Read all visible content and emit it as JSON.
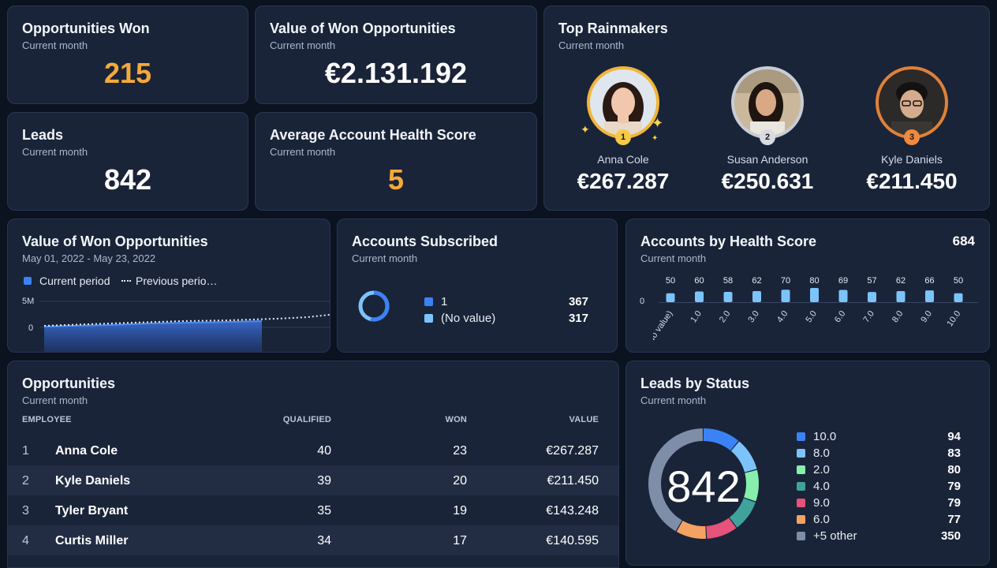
{
  "kpis": {
    "won": {
      "title": "Opportunities Won",
      "sub": "Current month",
      "value": "215"
    },
    "value_won": {
      "title": "Value of Won Opportunities",
      "sub": "Current month",
      "value": "€2.131.192"
    },
    "leads": {
      "title": "Leads",
      "sub": "Current month",
      "value": "842"
    },
    "health": {
      "title": "Average Account Health Score",
      "sub": "Current month",
      "value": "5"
    }
  },
  "rainmakers": {
    "title": "Top Rainmakers",
    "sub": "Current month",
    "people": [
      {
        "rank": "1",
        "name": "Anna Cole",
        "value": "€267.287",
        "ring": "#f2b53a"
      },
      {
        "rank": "2",
        "name": "Susan Anderson",
        "value": "€250.631",
        "ring": "#c8ccd4"
      },
      {
        "rank": "3",
        "name": "Kyle Daniels",
        "value": "€211.450",
        "ring": "#e0813a"
      }
    ]
  },
  "won_chart": {
    "title": "Value of Won Opportunities",
    "sub": "May 01, 2022 - May 23, 2022",
    "legend_current": "Current period",
    "legend_previous": "Previous perio…",
    "ytick_top": "5M",
    "ytick_zero": "0"
  },
  "subscribed": {
    "title": "Accounts Subscribed",
    "sub": "Current month",
    "items": [
      {
        "label": "1",
        "value": "367",
        "color": "#3b82f6"
      },
      {
        "label": "(No value)",
        "value": "317",
        "color": "#7cc3fb"
      }
    ]
  },
  "health_chart": {
    "title": "Accounts by Health Score",
    "sub": "Current month",
    "total": "684",
    "zero_label": "0"
  },
  "chart_data": {
    "type": "bar",
    "title": "Accounts by Health Score",
    "categories": [
      "(No value)",
      "1.0",
      "2.0",
      "3.0",
      "4.0",
      "5.0",
      "6.0",
      "7.0",
      "8.0",
      "9.0",
      "10.0"
    ],
    "values": [
      50,
      60,
      58,
      62,
      70,
      80,
      69,
      57,
      62,
      66,
      50
    ],
    "color": "#7cc3fb"
  },
  "opportunities": {
    "title": "Opportunities",
    "sub": "Current month",
    "headers": {
      "employee": "EMPLOYEE",
      "qualified": "QUALIFIED",
      "won": "WON",
      "value": "VALUE"
    },
    "rows": [
      {
        "idx": "1",
        "name": "Anna Cole",
        "qualified": "40",
        "won": "23",
        "value": "€267.287"
      },
      {
        "idx": "2",
        "name": "Kyle Daniels",
        "qualified": "39",
        "won": "20",
        "value": "€211.450"
      },
      {
        "idx": "3",
        "name": "Tyler Bryant",
        "qualified": "35",
        "won": "19",
        "value": "€143.248"
      },
      {
        "idx": "4",
        "name": "Curtis Miller",
        "qualified": "34",
        "won": "17",
        "value": "€140.595"
      }
    ]
  },
  "leads_status": {
    "title": "Leads by Status",
    "sub": "Current month",
    "total": "842",
    "items": [
      {
        "label": "10.0",
        "value": "94",
        "color": "#3b82f6"
      },
      {
        "label": "8.0",
        "value": "83",
        "color": "#7cc3fb"
      },
      {
        "label": "2.0",
        "value": "80",
        "color": "#86efac"
      },
      {
        "label": "4.0",
        "value": "79",
        "color": "#3fa39b"
      },
      {
        "label": "9.0",
        "value": "79",
        "color": "#e5527a"
      },
      {
        "label": "6.0",
        "value": "77",
        "color": "#f4a261"
      },
      {
        "label": "+5 other",
        "value": "350",
        "color": "#7f8ea8"
      }
    ]
  }
}
